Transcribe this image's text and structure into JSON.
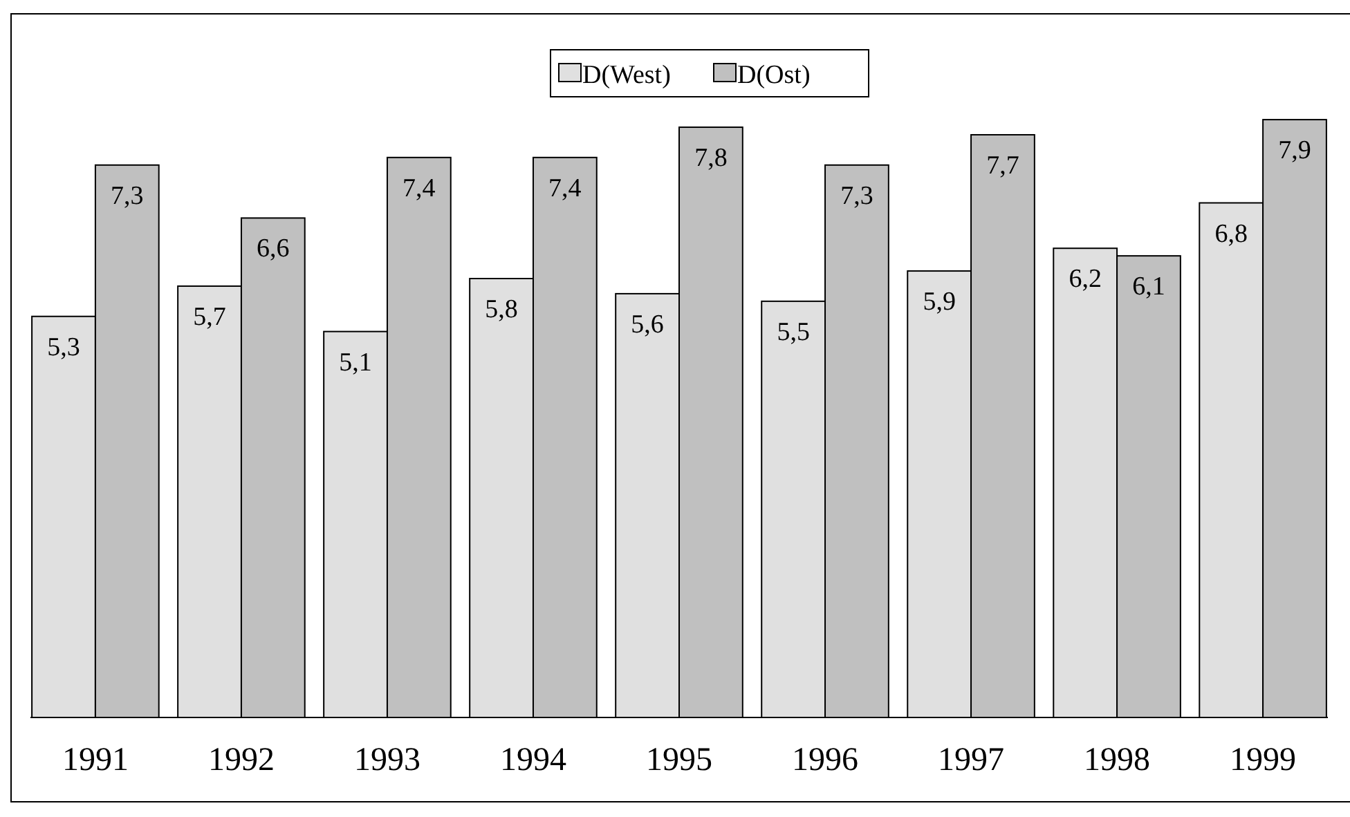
{
  "chart_data": {
    "type": "bar",
    "categories": [
      "1991",
      "1992",
      "1993",
      "1994",
      "1995",
      "1996",
      "1997",
      "1998",
      "1999"
    ],
    "series": [
      {
        "name": "D(West)",
        "color": "#e0e0e0",
        "values": [
          5.3,
          5.7,
          5.1,
          5.8,
          5.6,
          5.5,
          5.9,
          6.2,
          6.8
        ],
        "value_labels": [
          "5,3",
          "5,7",
          "5,1",
          "5,8",
          "5,6",
          "5,5",
          "5,9",
          "6,2",
          "6,8"
        ]
      },
      {
        "name": "D(Ost)",
        "color": "#c0c0c0",
        "values": [
          7.3,
          6.6,
          7.4,
          7.4,
          7.8,
          7.3,
          7.7,
          6.1,
          7.9
        ],
        "value_labels": [
          "7,3",
          "6,6",
          "7,4",
          "7,4",
          "7,8",
          "7,3",
          "7,7",
          "6,1",
          "7,9"
        ]
      }
    ],
    "tick_labels": "x",
    "legend": "top"
  }
}
